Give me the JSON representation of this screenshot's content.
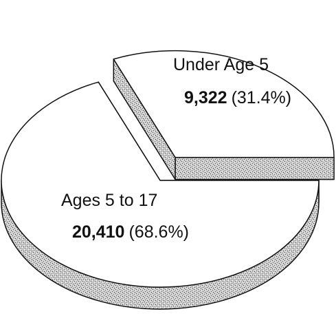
{
  "chart_data": {
    "type": "pie",
    "categories": [
      "Under Age 5",
      "Ages 5 to 17"
    ],
    "values": [
      9322,
      20410
    ],
    "value_labels": [
      "9,322",
      "20,410"
    ],
    "percent_labels": [
      "(31.4%)",
      "(68.6%)"
    ],
    "explode": [
      true,
      false
    ],
    "three_d": true
  }
}
